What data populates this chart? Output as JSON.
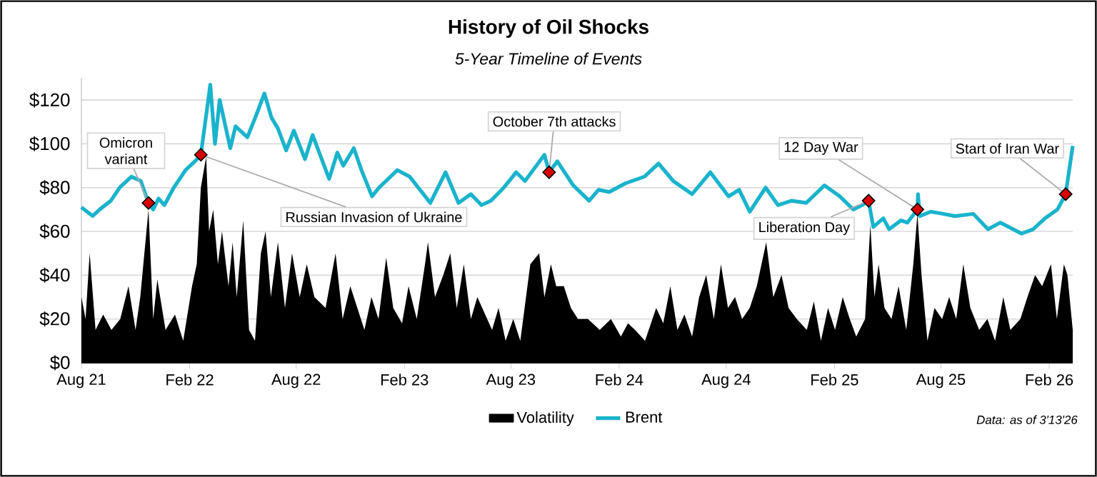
{
  "chart_data": {
    "type": "line",
    "title": "History of Oil Shocks",
    "subtitle": "5-Year Timeline of Events",
    "xlim": [
      "2021-08-01",
      "2026-03-13"
    ],
    "xticks": [
      {
        "value": "2021-08-01",
        "label": "Aug 21"
      },
      {
        "value": "2022-02-01",
        "label": "Feb 22"
      },
      {
        "value": "2022-08-01",
        "label": "Aug 22"
      },
      {
        "value": "2023-02-01",
        "label": "Feb 23"
      },
      {
        "value": "2023-08-01",
        "label": "Aug 23"
      },
      {
        "value": "2024-02-01",
        "label": "Feb 24"
      },
      {
        "value": "2024-08-01",
        "label": "Aug 24"
      },
      {
        "value": "2025-02-01",
        "label": "Feb 25"
      },
      {
        "value": "2025-08-01",
        "label": "Aug 25"
      },
      {
        "value": "2026-02-01",
        "label": "Feb 26"
      }
    ],
    "ylim": [
      0,
      130
    ],
    "yticks": [
      {
        "value": 0,
        "label": "$0"
      },
      {
        "value": 20,
        "label": "$20"
      },
      {
        "value": 40,
        "label": "$40"
      },
      {
        "value": 60,
        "label": "$60"
      },
      {
        "value": 80,
        "label": "$80"
      },
      {
        "value": 100,
        "label": "$100"
      },
      {
        "value": 120,
        "label": "$120"
      }
    ],
    "grid": "y",
    "legend": "bottom",
    "series": [
      {
        "name": "Volatility",
        "type": "area",
        "color": "#000000",
        "x": [
          "2021-08-01",
          "2021-08-08",
          "2021-08-15",
          "2021-08-25",
          "2021-09-07",
          "2021-09-21",
          "2021-10-06",
          "2021-10-20",
          "2021-11-01",
          "2021-11-09",
          "2021-11-23",
          "2021-12-01",
          "2021-12-08",
          "2021-12-22",
          "2022-01-07",
          "2022-01-21",
          "2022-02-05",
          "2022-02-13",
          "2022-02-20",
          "2022-03-01",
          "2022-03-06",
          "2022-03-13",
          "2022-03-21",
          "2022-03-28",
          "2022-04-08",
          "2022-04-15",
          "2022-04-22",
          "2022-05-03",
          "2022-05-13",
          "2022-05-23",
          "2022-06-02",
          "2022-06-10",
          "2022-06-19",
          "2022-07-01",
          "2022-07-13",
          "2022-07-25",
          "2022-08-07",
          "2022-08-19",
          "2022-09-01",
          "2022-09-20",
          "2022-10-07",
          "2022-10-19",
          "2022-11-01",
          "2022-11-13",
          "2022-11-25",
          "2022-12-07",
          "2022-12-19",
          "2023-01-01",
          "2023-01-13",
          "2023-01-28",
          "2023-02-08",
          "2023-02-22",
          "2023-03-08",
          "2023-03-13",
          "2023-03-25",
          "2023-04-08",
          "2023-04-20",
          "2023-05-01",
          "2023-05-13",
          "2023-05-25",
          "2023-06-05",
          "2023-06-30",
          "2023-07-11",
          "2023-07-23",
          "2023-08-05",
          "2023-08-17",
          "2023-09-03",
          "2023-09-18",
          "2023-09-27",
          "2023-10-08",
          "2023-10-17",
          "2023-10-30",
          "2023-11-11",
          "2023-11-23",
          "2023-12-10",
          "2023-12-30",
          "2024-01-18",
          "2024-02-04",
          "2024-02-16",
          "2024-02-28",
          "2024-03-16",
          "2024-04-04",
          "2024-04-16",
          "2024-04-28",
          "2024-05-10",
          "2024-05-22",
          "2024-06-04",
          "2024-06-16",
          "2024-06-28",
          "2024-07-11",
          "2024-07-23",
          "2024-08-04",
          "2024-08-16",
          "2024-08-28",
          "2024-09-10",
          "2024-09-22",
          "2024-10-08",
          "2024-10-20",
          "2024-11-03",
          "2024-11-15",
          "2024-11-29",
          "2024-12-16",
          "2024-12-28",
          "2025-01-09",
          "2025-01-21",
          "2025-02-02",
          "2025-02-15",
          "2025-02-27",
          "2025-03-10",
          "2025-03-25",
          "2025-04-03",
          "2025-04-10",
          "2025-04-17",
          "2025-04-27",
          "2025-05-09",
          "2025-05-21",
          "2025-06-03",
          "2025-06-15",
          "2025-06-22",
          "2025-06-29",
          "2025-07-09",
          "2025-07-21",
          "2025-08-03",
          "2025-08-15",
          "2025-08-27",
          "2025-09-08",
          "2025-09-20",
          "2025-10-05",
          "2025-10-19",
          "2025-11-01",
          "2025-11-15",
          "2025-11-27",
          "2025-12-14",
          "2025-12-26",
          "2026-01-08",
          "2026-01-20",
          "2026-02-04",
          "2026-02-14",
          "2026-02-26",
          "2026-03-04",
          "2026-03-13"
        ],
        "values": [
          30,
          20,
          50,
          15,
          22,
          15,
          20,
          35,
          15,
          30,
          70,
          20,
          38,
          15,
          22,
          10,
          35,
          45,
          80,
          94,
          60,
          70,
          45,
          60,
          35,
          55,
          30,
          65,
          15,
          10,
          50,
          60,
          30,
          55,
          25,
          50,
          30,
          45,
          30,
          25,
          50,
          20,
          35,
          25,
          15,
          30,
          20,
          48,
          25,
          18,
          35,
          20,
          45,
          55,
          30,
          40,
          50,
          25,
          45,
          20,
          30,
          15,
          25,
          10,
          20,
          10,
          45,
          50,
          30,
          45,
          35,
          35,
          25,
          20,
          20,
          15,
          20,
          12,
          18,
          15,
          10,
          25,
          18,
          35,
          15,
          22,
          12,
          30,
          40,
          20,
          45,
          25,
          30,
          20,
          25,
          35,
          55,
          30,
          40,
          25,
          20,
          15,
          28,
          10,
          25,
          15,
          30,
          20,
          12,
          20,
          63,
          30,
          45,
          25,
          20,
          35,
          15,
          45,
          68,
          40,
          10,
          25,
          20,
          30,
          20,
          45,
          25,
          15,
          20,
          10,
          30,
          15,
          20,
          30,
          40,
          35,
          45,
          20,
          45,
          40,
          15
        ]
      },
      {
        "name": "Brent",
        "type": "line",
        "color": "#1ab3cc",
        "x": [
          "2021-08-01",
          "2021-08-20",
          "2021-09-01",
          "2021-09-20",
          "2021-10-05",
          "2021-10-25",
          "2021-11-10",
          "2021-11-23",
          "2021-12-01",
          "2021-12-10",
          "2021-12-20",
          "2022-01-05",
          "2022-01-25",
          "2022-02-10",
          "2022-02-20",
          "2022-03-08",
          "2022-03-16",
          "2022-03-24",
          "2022-04-11",
          "2022-04-20",
          "2022-05-10",
          "2022-05-25",
          "2022-06-08",
          "2022-06-20",
          "2022-07-01",
          "2022-07-15",
          "2022-07-28",
          "2022-08-16",
          "2022-08-29",
          "2022-09-26",
          "2022-10-10",
          "2022-10-20",
          "2022-11-07",
          "2022-11-20",
          "2022-12-08",
          "2022-12-20",
          "2023-01-20",
          "2023-02-10",
          "2023-03-17",
          "2023-04-12",
          "2023-05-04",
          "2023-05-25",
          "2023-06-12",
          "2023-06-28",
          "2023-07-20",
          "2023-08-10",
          "2023-08-25",
          "2023-09-27",
          "2023-10-05",
          "2023-10-19",
          "2023-11-15",
          "2023-12-12",
          "2023-12-28",
          "2024-01-15",
          "2024-02-12",
          "2024-03-15",
          "2024-04-08",
          "2024-05-03",
          "2024-06-04",
          "2024-07-05",
          "2024-08-05",
          "2024-08-23",
          "2024-09-10",
          "2024-10-07",
          "2024-10-28",
          "2024-11-20",
          "2024-12-15",
          "2025-01-15",
          "2025-02-10",
          "2025-03-05",
          "2025-03-20",
          "2025-03-31",
          "2025-04-08",
          "2025-04-25",
          "2025-05-05",
          "2025-05-25",
          "2025-06-05",
          "2025-06-22",
          "2025-06-23",
          "2025-06-26",
          "2025-07-15",
          "2025-08-05",
          "2025-08-25",
          "2025-09-25",
          "2025-10-20",
          "2025-11-10",
          "2025-12-16",
          "2026-01-05",
          "2026-01-25",
          "2026-02-15",
          "2026-03-01",
          "2026-03-13"
        ],
        "values": [
          71,
          67,
          70,
          74,
          80,
          85,
          83,
          73,
          70,
          75,
          72,
          80,
          88,
          92,
          95,
          127,
          100,
          120,
          98,
          108,
          103,
          113,
          123,
          112,
          107,
          97,
          106,
          93,
          104,
          84,
          96,
          90,
          98,
          88,
          76,
          80,
          88,
          85,
          73,
          87,
          73,
          77,
          72,
          74,
          80,
          87,
          83,
          95,
          87,
          92,
          81,
          74,
          79,
          78,
          82,
          85,
          91,
          83,
          77,
          87,
          76,
          79,
          69,
          80,
          72,
          74,
          73,
          81,
          76,
          70,
          72,
          74,
          62,
          66,
          61,
          65,
          64,
          70,
          77,
          67,
          69,
          68,
          67,
          68,
          61,
          64,
          59,
          61,
          66,
          70,
          77,
          99
        ]
      }
    ],
    "annotations": [
      {
        "text": "Omicron variant",
        "x": "2021-11-23",
        "y": 73
      },
      {
        "text": "Russian Invasion of Ukraine",
        "x": "2022-02-20",
        "y": 95
      },
      {
        "text": "October 7th attacks",
        "x": "2023-10-05",
        "y": 87
      },
      {
        "text": "Liberation Day",
        "x": "2025-03-31",
        "y": 74
      },
      {
        "text": "12 Day War",
        "x": "2025-06-22",
        "y": 70
      },
      {
        "text": "Start of Iran War",
        "x": "2026-03-01",
        "y": 77
      },
      "Data: as of 3'13'26"
    ]
  }
}
